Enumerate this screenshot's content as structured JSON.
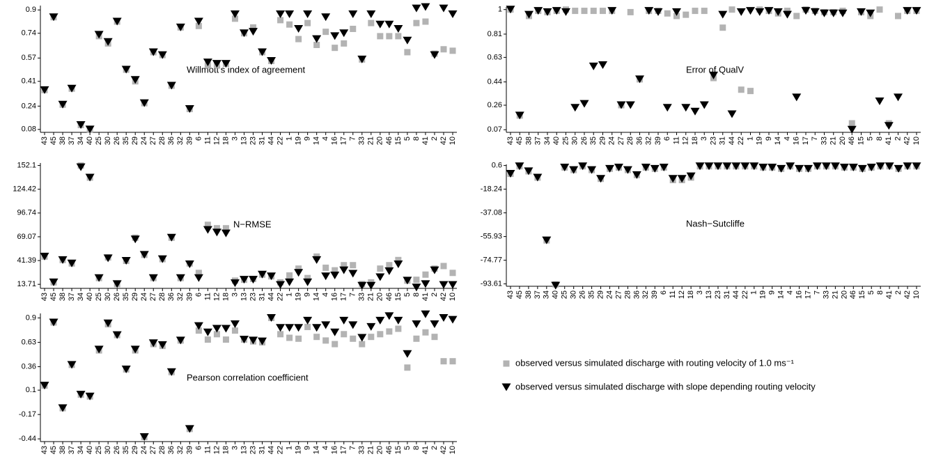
{
  "chart_data": [
    {
      "type": "scatter",
      "title": "Willmott's index of agreement",
      "categories": [
        "43",
        "45",
        "38",
        "37",
        "34",
        "40",
        "25",
        "30",
        "26",
        "35",
        "29",
        "24",
        "27",
        "28",
        "36",
        "32",
        "39",
        "6",
        "11",
        "12",
        "18",
        "3",
        "13",
        "23",
        "31",
        "44",
        "22",
        "1",
        "19",
        "9",
        "14",
        "4",
        "16",
        "17",
        "7",
        "33",
        "21",
        "20",
        "46",
        "15",
        "5",
        "8",
        "41",
        "2",
        "42",
        "10"
      ],
      "ylim": [
        0.06,
        0.93
      ],
      "yticks": [
        0.08,
        0.24,
        0.41,
        0.57,
        0.74,
        0.9
      ],
      "series": [
        {
          "name": "observed versus simulated discharge with routing velocity of 1.0 ms⁻¹",
          "color": "#b3b3b3",
          "marker": "square",
          "values": [
            0.35,
            0.85,
            0.25,
            0.36,
            0.11,
            0.08,
            0.72,
            0.67,
            0.82,
            0.49,
            0.41,
            0.26,
            0.61,
            0.59,
            0.38,
            0.78,
            0.22,
            0.79,
            0.52,
            0.52,
            0.53,
            0.84,
            0.74,
            0.78,
            0.61,
            0.55,
            0.83,
            0.8,
            0.7,
            0.81,
            0.66,
            0.75,
            0.64,
            0.67,
            0.77,
            0.56,
            0.81,
            0.72,
            0.72,
            0.72,
            0.61,
            0.81,
            0.82,
            0.6,
            0.63,
            0.62
          ]
        },
        {
          "name": "observed versus simulated discharge with slope depending routing velocity",
          "color": "#000000",
          "marker": "triangle",
          "values": [
            0.35,
            0.85,
            0.25,
            0.36,
            0.11,
            0.08,
            0.73,
            0.68,
            0.82,
            0.49,
            0.42,
            0.26,
            0.61,
            0.59,
            0.38,
            0.78,
            0.22,
            0.82,
            0.54,
            0.53,
            0.53,
            0.87,
            0.74,
            0.75,
            0.61,
            0.55,
            0.87,
            0.87,
            0.77,
            0.87,
            0.7,
            0.85,
            0.72,
            0.74,
            0.87,
            0.56,
            0.87,
            0.8,
            0.8,
            0.77,
            0.69,
            0.91,
            0.92,
            0.59,
            0.91,
            0.87
          ]
        }
      ]
    },
    {
      "type": "scatter",
      "title": "Error of QualV",
      "categories": [
        "43",
        "45",
        "38",
        "37",
        "34",
        "40",
        "25",
        "30",
        "26",
        "35",
        "29",
        "24",
        "27",
        "28",
        "36",
        "32",
        "39",
        "6",
        "11",
        "12",
        "18",
        "3",
        "23",
        "31",
        "44",
        "22",
        "1",
        "19",
        "9",
        "14",
        "4",
        "16",
        "17",
        "7",
        "33",
        "21",
        "20",
        "46",
        "15",
        "5",
        "8",
        "41",
        "2",
        "42",
        "10"
      ],
      "ylim": [
        0.05,
        1.02
      ],
      "yticks": [
        0.07,
        0.26,
        0.44,
        0.63,
        0.81,
        1
      ],
      "series": [
        {
          "name": "observed versus simulated discharge with routing velocity of 1.0 ms⁻¹",
          "color": "#b3b3b3",
          "marker": "square",
          "values": [
            1.0,
            0.18,
            0.95,
            0.99,
            0.98,
            0.99,
            1.0,
            0.99,
            0.99,
            0.99,
            0.99,
            0.99,
            0.26,
            0.98,
            0.46,
            0.99,
            0.99,
            0.97,
            0.95,
            0.96,
            0.99,
            0.99,
            0.47,
            0.86,
            1.0,
            0.38,
            0.37,
            1.0,
            0.99,
            0.97,
            0.99,
            0.95,
            1.0,
            0.99,
            0.98,
            0.98,
            0.99,
            0.12,
            0.98,
            0.95,
            1.0,
            0.12,
            0.95,
            0.99,
            0.99
          ]
        },
        {
          "name": "observed versus simulated discharge with slope depending routing velocity",
          "color": "#000000",
          "marker": "triangle",
          "values": [
            1.0,
            0.18,
            0.96,
            0.99,
            0.98,
            0.99,
            0.98,
            0.24,
            0.27,
            0.56,
            0.57,
            0.99,
            0.26,
            0.26,
            0.46,
            0.99,
            0.98,
            0.24,
            0.98,
            0.24,
            0.21,
            0.26,
            0.49,
            0.96,
            0.19,
            0.98,
            0.99,
            0.98,
            0.99,
            0.98,
            0.96,
            0.32,
            0.99,
            0.98,
            0.97,
            0.97,
            0.97,
            0.07,
            0.98,
            0.97,
            0.29,
            0.1,
            0.32,
            0.99,
            0.99
          ]
        }
      ]
    },
    {
      "type": "scatter",
      "title": "N−RMSE",
      "categories": [
        "43",
        "45",
        "38",
        "37",
        "34",
        "40",
        "25",
        "30",
        "26",
        "35",
        "29",
        "24",
        "27",
        "28",
        "36",
        "32",
        "39",
        "6",
        "11",
        "12",
        "18",
        "3",
        "13",
        "23",
        "31",
        "44",
        "22",
        "1",
        "19",
        "9",
        "14",
        "4",
        "16",
        "17",
        "7",
        "33",
        "21",
        "20",
        "46",
        "15",
        "5",
        "8",
        "41",
        "2",
        "42",
        "10"
      ],
      "ylim": [
        9,
        155
      ],
      "yticks": [
        13.71,
        41.39,
        69.07,
        96.74,
        124.42,
        152.1
      ],
      "series": [
        {
          "name": "observed versus simulated discharge with routing velocity of 1.0 ms⁻¹",
          "color": "#b3b3b3",
          "marker": "square",
          "values": [
            46,
            16,
            42,
            38,
            152,
            138,
            21,
            45,
            14,
            41,
            68,
            48,
            21,
            43,
            68,
            21,
            38,
            27,
            83,
            79,
            79,
            18,
            19,
            20,
            25,
            23,
            16,
            24,
            32,
            21,
            46,
            33,
            30,
            36,
            36,
            14,
            16,
            32,
            36,
            42,
            18,
            19,
            25,
            32,
            35,
            27
          ]
        },
        {
          "name": "observed versus simulated discharge with slope depending routing velocity",
          "color": "#000000",
          "marker": "triangle",
          "values": [
            46,
            16,
            42,
            38,
            150,
            138,
            21,
            44,
            14,
            41,
            66,
            48,
            21,
            43,
            68,
            21,
            37,
            21,
            77,
            74,
            73,
            15,
            19,
            19,
            25,
            23,
            13,
            16,
            27,
            16,
            42,
            23,
            24,
            30,
            26,
            12,
            12,
            22,
            29,
            37,
            18,
            10,
            14,
            30,
            13,
            13
          ]
        }
      ]
    },
    {
      "type": "scatter",
      "title": "Nash−Sutcliffe",
      "categories": [
        "43",
        "45",
        "38",
        "37",
        "34",
        "40",
        "25",
        "30",
        "26",
        "35",
        "29",
        "24",
        "27",
        "28",
        "36",
        "32",
        "39",
        "6",
        "11",
        "12",
        "18",
        "3",
        "13",
        "23",
        "31",
        "44",
        "22",
        "1",
        "19",
        "9",
        "14",
        "4",
        "16",
        "17",
        "7",
        "33",
        "21",
        "20",
        "46",
        "15",
        "5",
        "8",
        "41",
        "2",
        "42",
        "10"
      ],
      "ylim": [
        -95.5,
        1.5
      ],
      "yticks": [
        -93.61,
        -74.77,
        -55.93,
        -37.08,
        -18.24,
        0.6
      ],
      "series": [
        {
          "name": "observed versus simulated discharge with routing velocity of 1.0 ms⁻¹",
          "color": "#b3b3b3",
          "marker": "square",
          "values": [
            -6,
            0,
            -4,
            -9,
            -59,
            -94,
            -1,
            -3,
            0,
            -3,
            -10,
            -2,
            -1,
            -3,
            -7,
            -1,
            -2,
            -1,
            -11,
            -11,
            -9,
            0,
            0,
            0,
            0,
            0,
            0,
            0,
            -1,
            -1,
            -2,
            0,
            -2,
            -2,
            0,
            0,
            0,
            -1,
            -1,
            -2,
            -1,
            0,
            0,
            -2,
            0,
            0
          ]
        },
        {
          "name": "observed versus simulated discharge with slope depending routing velocity",
          "color": "#000000",
          "marker": "triangle",
          "values": [
            -6,
            0,
            -4,
            -9,
            -59,
            -95,
            -1,
            -3,
            0,
            -3,
            -10,
            -2,
            -1,
            -3,
            -7,
            -1,
            -2,
            -1,
            -10,
            -10,
            -8,
            0,
            0,
            0,
            0,
            0,
            0,
            0,
            -1,
            -1,
            -2,
            0,
            -2,
            -2,
            0,
            0,
            0,
            -1,
            -1,
            -2,
            -1,
            0,
            0,
            -2,
            0,
            0
          ]
        }
      ]
    },
    {
      "type": "scatter",
      "title": "Pearson correlation coefficient",
      "categories": [
        "43",
        "45",
        "38",
        "37",
        "34",
        "40",
        "25",
        "30",
        "26",
        "35",
        "29",
        "24",
        "27",
        "28",
        "36",
        "32",
        "39",
        "6",
        "11",
        "12",
        "18",
        "3",
        "13",
        "23",
        "31",
        "44",
        "22",
        "1",
        "19",
        "9",
        "14",
        "4",
        "16",
        "17",
        "7",
        "33",
        "21",
        "20",
        "46",
        "15",
        "5",
        "8",
        "41",
        "2",
        "42",
        "10"
      ],
      "ylim": [
        -0.47,
        0.95
      ],
      "yticks": [
        -0.44,
        -0.17,
        0.1,
        0.36,
        0.63,
        0.9
      ],
      "series": [
        {
          "name": "observed versus simulated discharge with routing velocity of 1.0 ms⁻¹",
          "color": "#b3b3b3",
          "marker": "square",
          "values": [
            0.15,
            0.85,
            -0.1,
            0.38,
            0.05,
            0.03,
            0.54,
            0.83,
            0.71,
            0.33,
            0.54,
            -0.42,
            0.61,
            0.59,
            0.3,
            0.65,
            -0.33,
            0.76,
            0.66,
            0.72,
            0.66,
            0.76,
            0.66,
            0.64,
            0.63,
            0.9,
            0.72,
            0.68,
            0.67,
            0.8,
            0.69,
            0.65,
            0.61,
            0.72,
            0.67,
            0.61,
            0.69,
            0.72,
            0.75,
            0.78,
            0.35,
            0.67,
            0.74,
            0.69,
            0.42,
            0.42
          ]
        },
        {
          "name": "observed versus simulated discharge with slope depending routing velocity",
          "color": "#000000",
          "marker": "triangle",
          "values": [
            0.15,
            0.85,
            -0.1,
            0.38,
            0.05,
            0.03,
            0.55,
            0.84,
            0.71,
            0.33,
            0.55,
            -0.42,
            0.62,
            0.6,
            0.3,
            0.65,
            -0.33,
            0.81,
            0.74,
            0.78,
            0.78,
            0.83,
            0.66,
            0.65,
            0.64,
            0.9,
            0.79,
            0.79,
            0.79,
            0.87,
            0.79,
            0.82,
            0.74,
            0.87,
            0.82,
            0.68,
            0.8,
            0.87,
            0.92,
            0.87,
            0.5,
            0.83,
            0.94,
            0.83,
            0.9,
            0.88
          ]
        }
      ]
    }
  ]
}
